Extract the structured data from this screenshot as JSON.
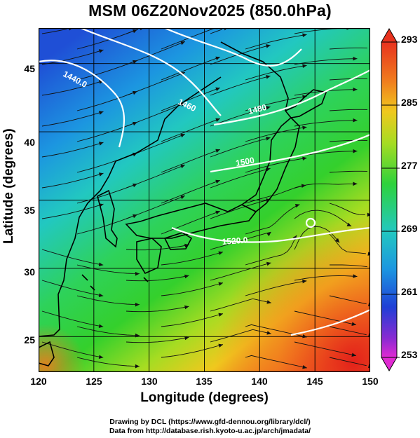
{
  "title": "MSM 06Z20Nov2025 (850.0hPa)",
  "axes": {
    "xlabel": "Longitude (degrees)",
    "ylabel": "Latitude  (degrees)"
  },
  "credits": {
    "line1": "Drawing by DCL (https://www.gfd-dennou.org/library/dcl/)",
    "line2": "Data from http://database.rish.kyoto-u.ac.jp/arch/jmadata/"
  },
  "map": {
    "lon_range": [
      120,
      150
    ],
    "lat_range": [
      22.4,
      47.6
    ],
    "x_ticks": [
      "120",
      "125",
      "130",
      "135",
      "140",
      "145",
      "150"
    ],
    "y_ticks": [
      "25",
      "30",
      "35",
      "40",
      "45"
    ],
    "contour_labels": [
      "1440.0",
      "1460",
      "1480",
      "1500",
      "1520.0"
    ],
    "colors": {
      "warm": "#e8321e",
      "mid": "#36d22c",
      "cold": "#1e5ad2",
      "contour": "#ffffff"
    }
  },
  "colorbar": {
    "ticks": [
      "293",
      "285",
      "277",
      "269",
      "261",
      "253"
    ],
    "range": [
      253,
      293
    ]
  }
}
